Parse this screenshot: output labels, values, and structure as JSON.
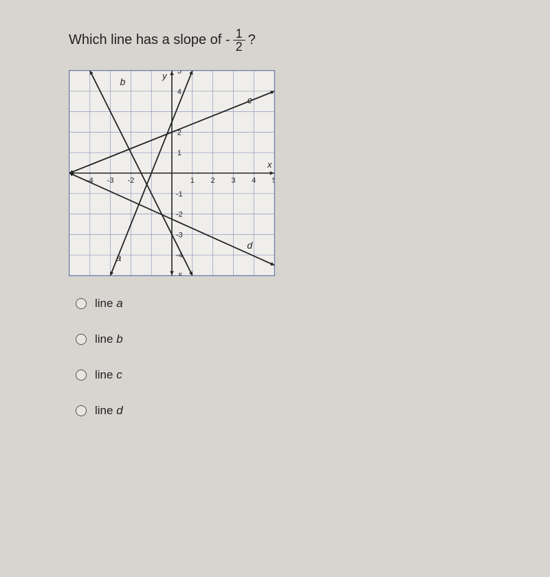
{
  "question": {
    "text_before": "Which line has a slope of -",
    "fraction_num": "1",
    "fraction_den": "2",
    "text_after": "?"
  },
  "graph": {
    "x_range": [
      -5,
      5
    ],
    "y_range": [
      -5,
      5
    ],
    "grid_step": 1,
    "axis_labels": {
      "x": "x",
      "y": "y"
    },
    "x_ticks": [
      "1",
      "2",
      "3",
      "4",
      "5"
    ],
    "x_ticks_neg": [
      "-4",
      "-3",
      "-2"
    ],
    "x_ticks_neg_pos": [
      -4,
      -3,
      -2
    ],
    "y_ticks": [
      "1",
      "2",
      "4",
      "5"
    ],
    "y_ticks_pos": [
      1,
      2,
      4,
      5
    ],
    "y_ticks_neg": [
      "-1",
      "-2",
      "-3",
      "-4",
      "-5"
    ],
    "y_ticks_neg_pos": [
      -1,
      -2,
      -3,
      -4,
      -5
    ],
    "grid_color": "#8a98c0",
    "axis_color": "#222222",
    "line_color": "#222222",
    "line_width": 1.8,
    "background": "#f0eeea",
    "tick_fontsize": 11,
    "label_fontsize": 13,
    "lineletter_fontsize": 14,
    "lineletter_style": "italic",
    "lines": {
      "a": {
        "points": [
          [
            -3,
            -5
          ],
          [
            1,
            5
          ]
        ],
        "label_pos": [
          -2.6,
          -4.3
        ]
      },
      "b": {
        "points": [
          [
            -4,
            5
          ],
          [
            1,
            -5
          ]
        ],
        "label_pos": [
          -2.4,
          4.3
        ]
      },
      "c": {
        "points": [
          [
            -5,
            0
          ],
          [
            5,
            4
          ]
        ],
        "label_pos": [
          3.8,
          3.4
        ]
      },
      "d": {
        "points": [
          [
            -5,
            0
          ],
          [
            5,
            -4.5
          ]
        ],
        "label_pos": [
          3.8,
          -3.7
        ]
      }
    }
  },
  "options": [
    {
      "label_prefix": "line ",
      "label_letter": "a"
    },
    {
      "label_prefix": "line ",
      "label_letter": "b"
    },
    {
      "label_prefix": "line ",
      "label_letter": "c"
    },
    {
      "label_prefix": "line ",
      "label_letter": "d"
    }
  ]
}
